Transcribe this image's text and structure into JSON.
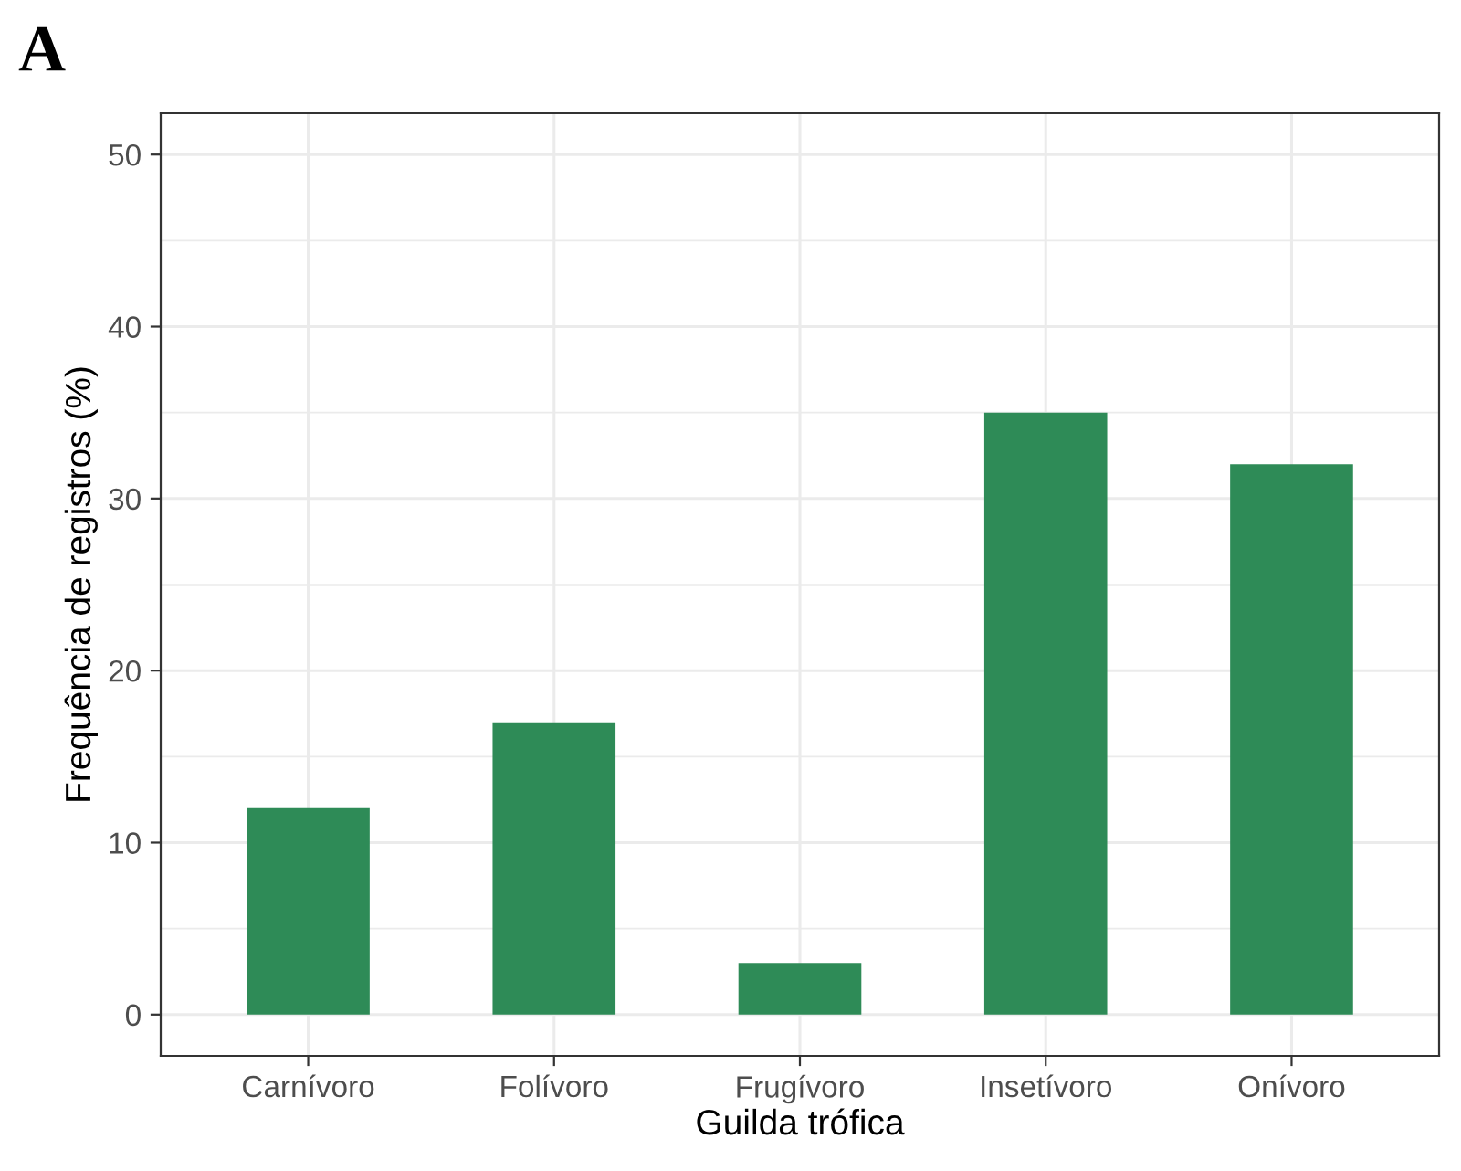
{
  "chart_data": {
    "type": "bar",
    "title": "A",
    "xlabel": "Guilda trófica",
    "ylabel": "Frequência de registros (%)",
    "categories": [
      "Carnívoro",
      "Folívoro",
      "Frugívoro",
      "Insetívoro",
      "Onívoro"
    ],
    "values": [
      12,
      17,
      3,
      35,
      32
    ],
    "color": "#2e8b57",
    "ylim": [
      -2.4,
      52.4
    ],
    "yticks": [
      0,
      10,
      20,
      30,
      40,
      50
    ],
    "grid": true
  }
}
